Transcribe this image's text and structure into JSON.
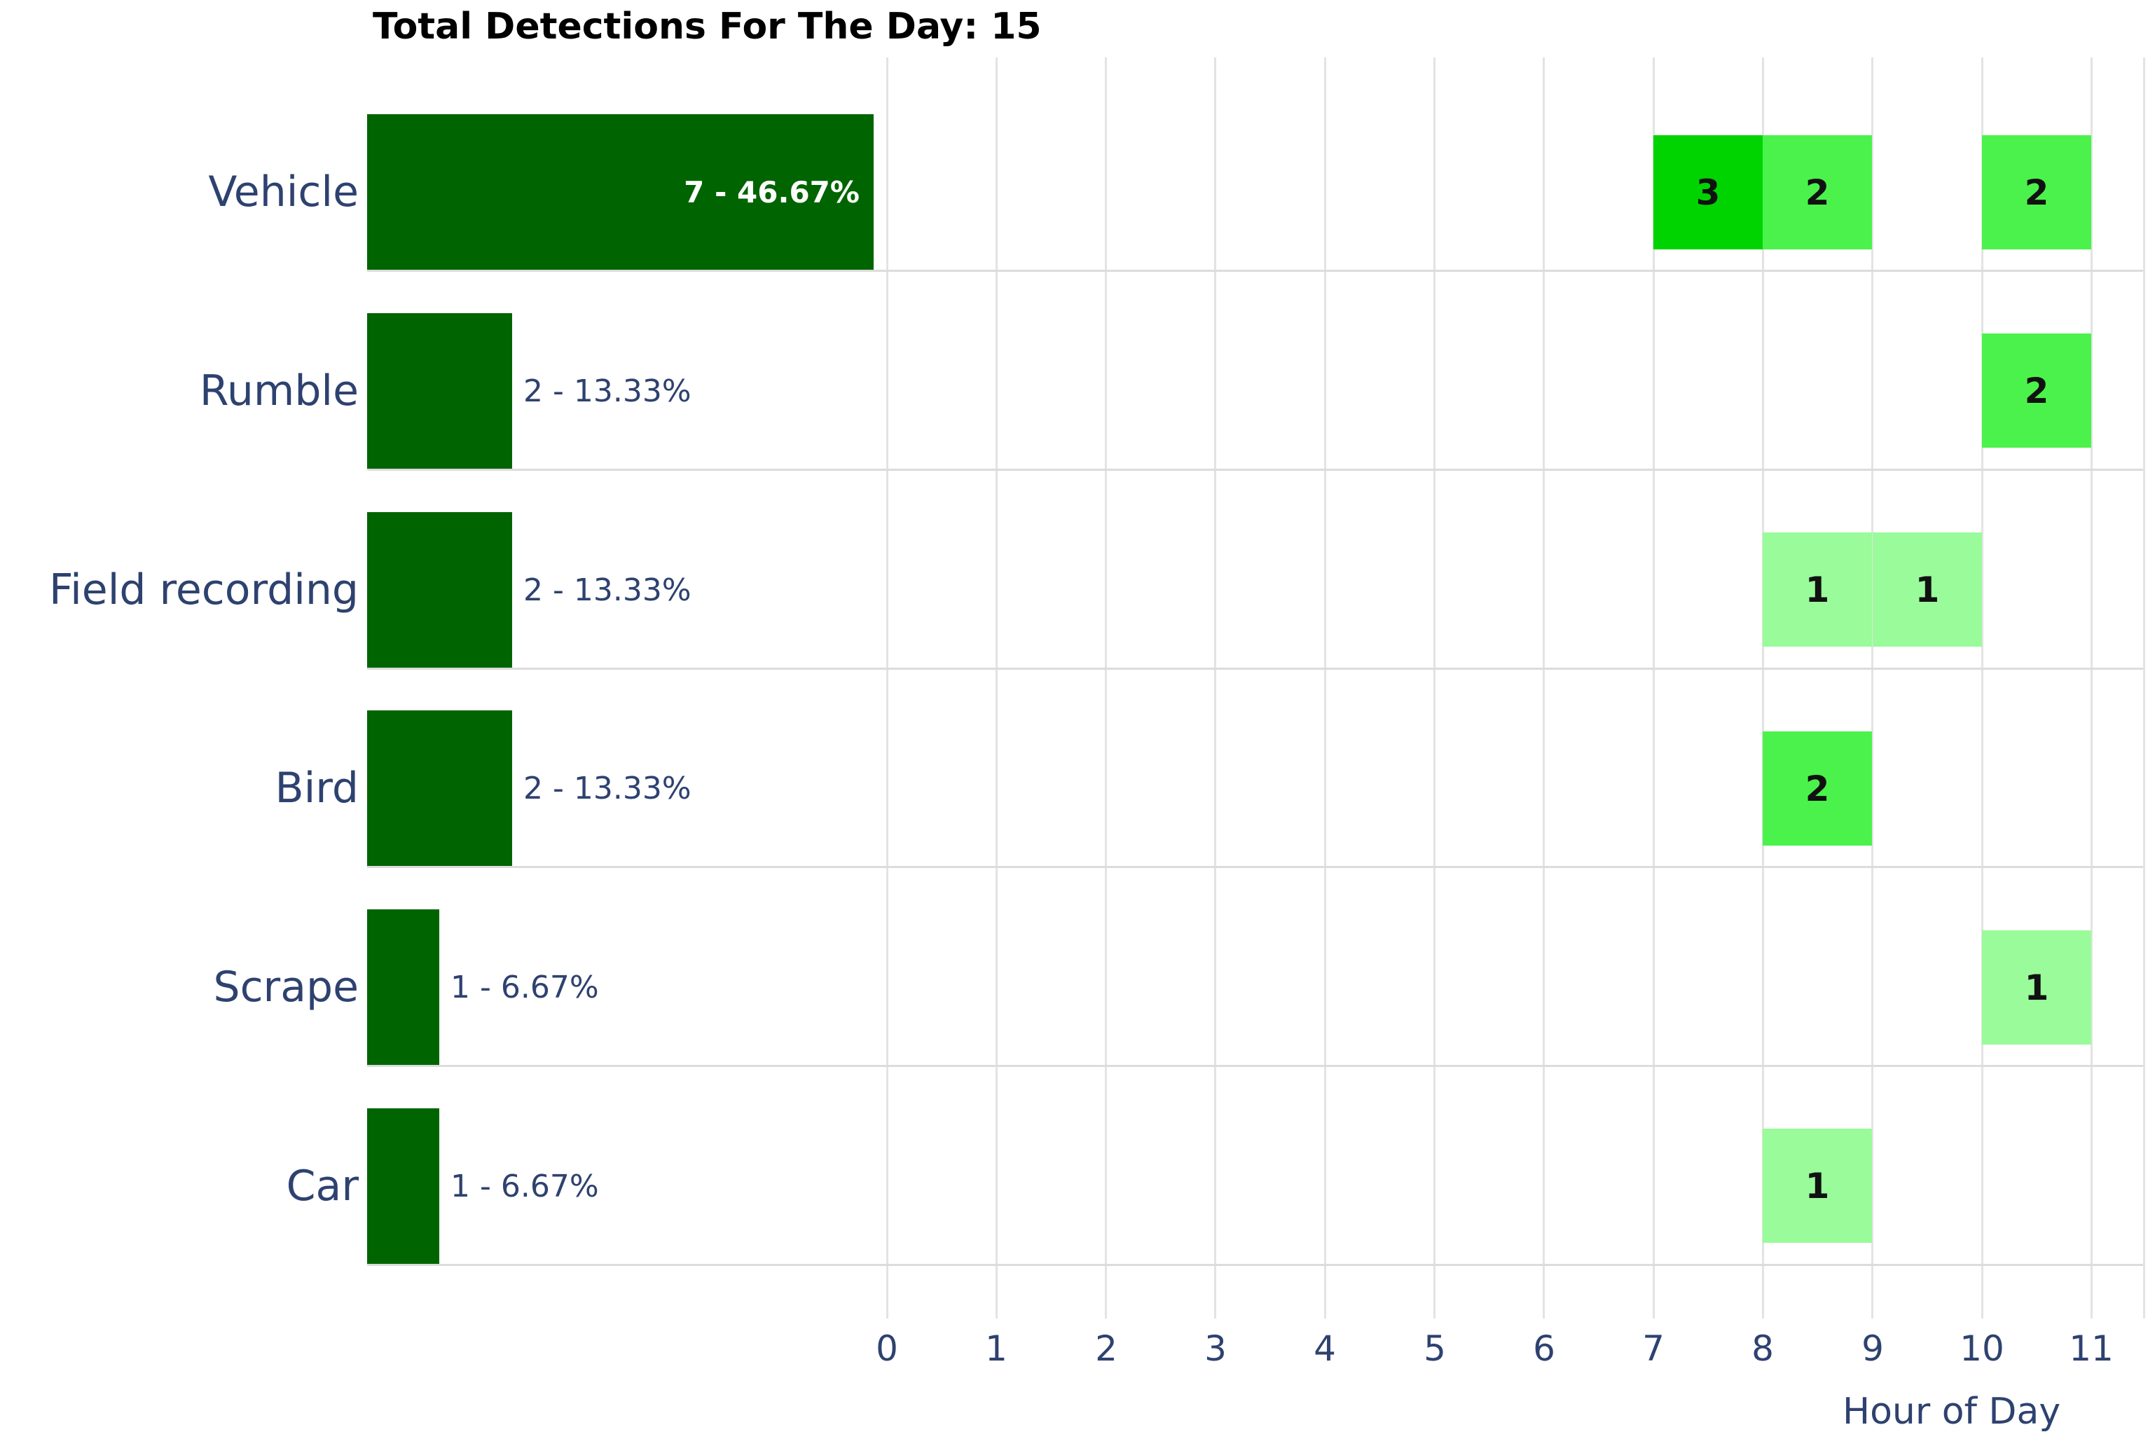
{
  "title": "Total Detections For The Day: 15",
  "total_detections": 15,
  "x_axis": {
    "label": "Hour of Day",
    "ticks": [
      "0",
      "1",
      "2",
      "3",
      "4",
      "5",
      "6",
      "7",
      "8",
      "9",
      "10",
      "11"
    ]
  },
  "categories": [
    {
      "label": "Vehicle",
      "count": 7,
      "value_label": "7 - 46.67%",
      "label_inside_bar": true,
      "hourly": [
        {
          "hour": 7,
          "count": 3
        },
        {
          "hour": 8,
          "count": 2
        },
        {
          "hour": 10,
          "count": 2
        }
      ]
    },
    {
      "label": "Rumble",
      "count": 2,
      "value_label": "2 - 13.33%",
      "label_inside_bar": false,
      "hourly": [
        {
          "hour": 10,
          "count": 2
        }
      ]
    },
    {
      "label": "Field recording",
      "count": 2,
      "value_label": "2 - 13.33%",
      "label_inside_bar": false,
      "hourly": [
        {
          "hour": 8,
          "count": 1
        },
        {
          "hour": 9,
          "count": 1
        }
      ]
    },
    {
      "label": "Bird",
      "count": 2,
      "value_label": "2 - 13.33%",
      "label_inside_bar": false,
      "hourly": [
        {
          "hour": 8,
          "count": 2
        }
      ]
    },
    {
      "label": "Scrape",
      "count": 1,
      "value_label": "1 - 6.67%",
      "label_inside_bar": false,
      "hourly": [
        {
          "hour": 10,
          "count": 1
        }
      ]
    },
    {
      "label": "Car",
      "count": 1,
      "value_label": "1 - 6.67%",
      "label_inside_bar": false,
      "hourly": [
        {
          "hour": 8,
          "count": 1
        }
      ]
    }
  ],
  "colors": {
    "bar": "#006400",
    "bar_label_inside": "#ffffff",
    "text": "#2e4270",
    "title_text": "#000000",
    "grid": "#e3e3e3",
    "row_separator": "#dcdcdc",
    "cell_value_text": "#111111",
    "heat_1": "#99fb99",
    "heat_2": "#4bf24b",
    "heat_3": "#00d400"
  },
  "chart_data": [
    {
      "type": "bar",
      "orientation": "horizontal",
      "title": "Total Detections For The Day: 15",
      "categories": [
        "Vehicle",
        "Rumble",
        "Field recording",
        "Bird",
        "Scrape",
        "Car"
      ],
      "values": [
        7,
        2,
        2,
        2,
        1,
        1
      ],
      "data_labels": [
        "7 - 46.67%",
        "2 - 13.33%",
        "2 - 13.33%",
        "2 - 13.33%",
        "1 - 6.67%",
        "1 - 6.67%"
      ],
      "total": 15,
      "bar_color": "#006400",
      "xlabel": "",
      "ylabel": "",
      "grid": false,
      "legend_position": "none"
    },
    {
      "type": "heatmap",
      "xlabel": "Hour of Day",
      "x": [
        0,
        1,
        2,
        3,
        4,
        5,
        6,
        7,
        8,
        9,
        10,
        11
      ],
      "xlim": [
        0,
        11.5
      ],
      "categories": [
        "Vehicle",
        "Rumble",
        "Field recording",
        "Bird",
        "Scrape",
        "Car"
      ],
      "cells": [
        {
          "category": "Vehicle",
          "hour": 7,
          "value": 3
        },
        {
          "category": "Vehicle",
          "hour": 8,
          "value": 2
        },
        {
          "category": "Vehicle",
          "hour": 10,
          "value": 2
        },
        {
          "category": "Rumble",
          "hour": 10,
          "value": 2
        },
        {
          "category": "Field recording",
          "hour": 8,
          "value": 1
        },
        {
          "category": "Field recording",
          "hour": 9,
          "value": 1
        },
        {
          "category": "Bird",
          "hour": 8,
          "value": 2
        },
        {
          "category": "Scrape",
          "hour": 10,
          "value": 1
        },
        {
          "category": "Car",
          "hour": 8,
          "value": 1
        }
      ],
      "value_color_map": {
        "1": "#99fb99",
        "2": "#4bf24b",
        "3": "#00d400"
      },
      "grid": true,
      "legend_position": "none"
    }
  ]
}
